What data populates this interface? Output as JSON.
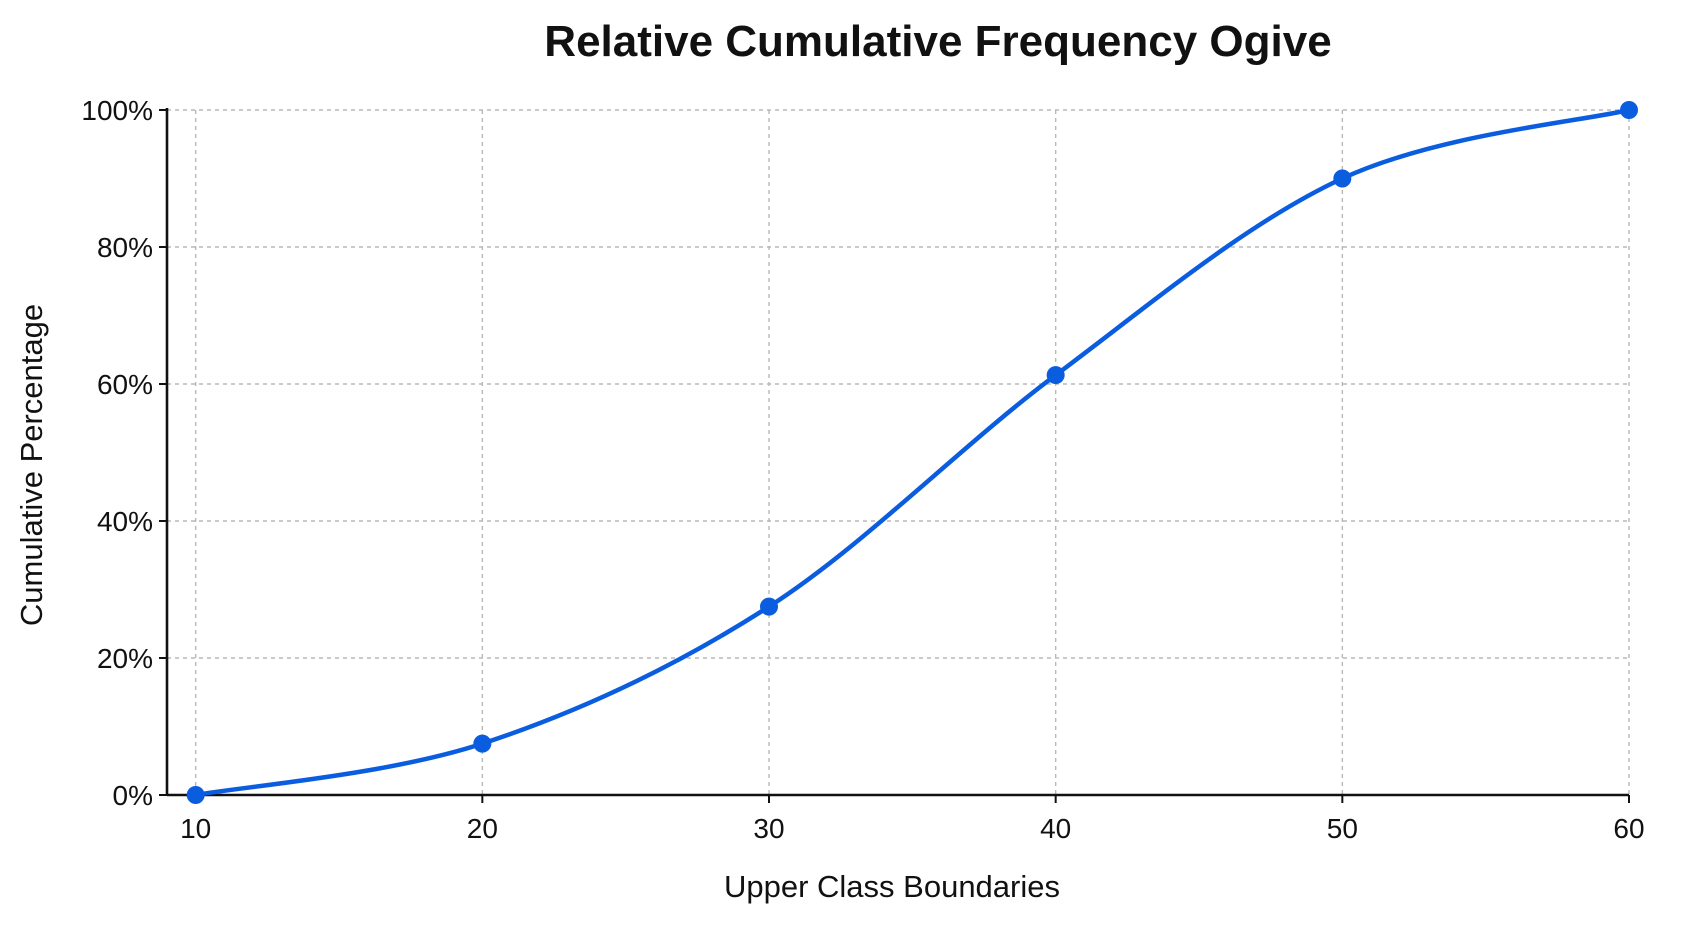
{
  "chart_data": {
    "type": "line",
    "title": "Relative Cumulative Frequency Ogive",
    "xlabel": "Upper Class Boundaries",
    "ylabel": "Cumulative Percentage",
    "x": [
      10,
      20,
      30,
      40,
      50,
      60
    ],
    "series": [
      {
        "values": [
          0,
          7.5,
          27.5,
          61.3,
          90,
          100
        ]
      }
    ],
    "xlim": [
      9,
      60
    ],
    "ylim": [
      0,
      100
    ],
    "xticks": [
      10,
      20,
      30,
      40,
      50,
      60
    ],
    "yticks": [
      0,
      20,
      40,
      60,
      80,
      100
    ],
    "ytick_labels": [
      "0%",
      "20%",
      "40%",
      "60%",
      "80%",
      "100%"
    ],
    "grid": true,
    "grid_style": "dashed",
    "smoothed": true,
    "markers": true,
    "legend": "none",
    "colors": {
      "line": "#0b5de0",
      "marker": "#0b5de0",
      "grid": "#b8b8b8",
      "axis": "#111111",
      "text": "#111111"
    }
  }
}
